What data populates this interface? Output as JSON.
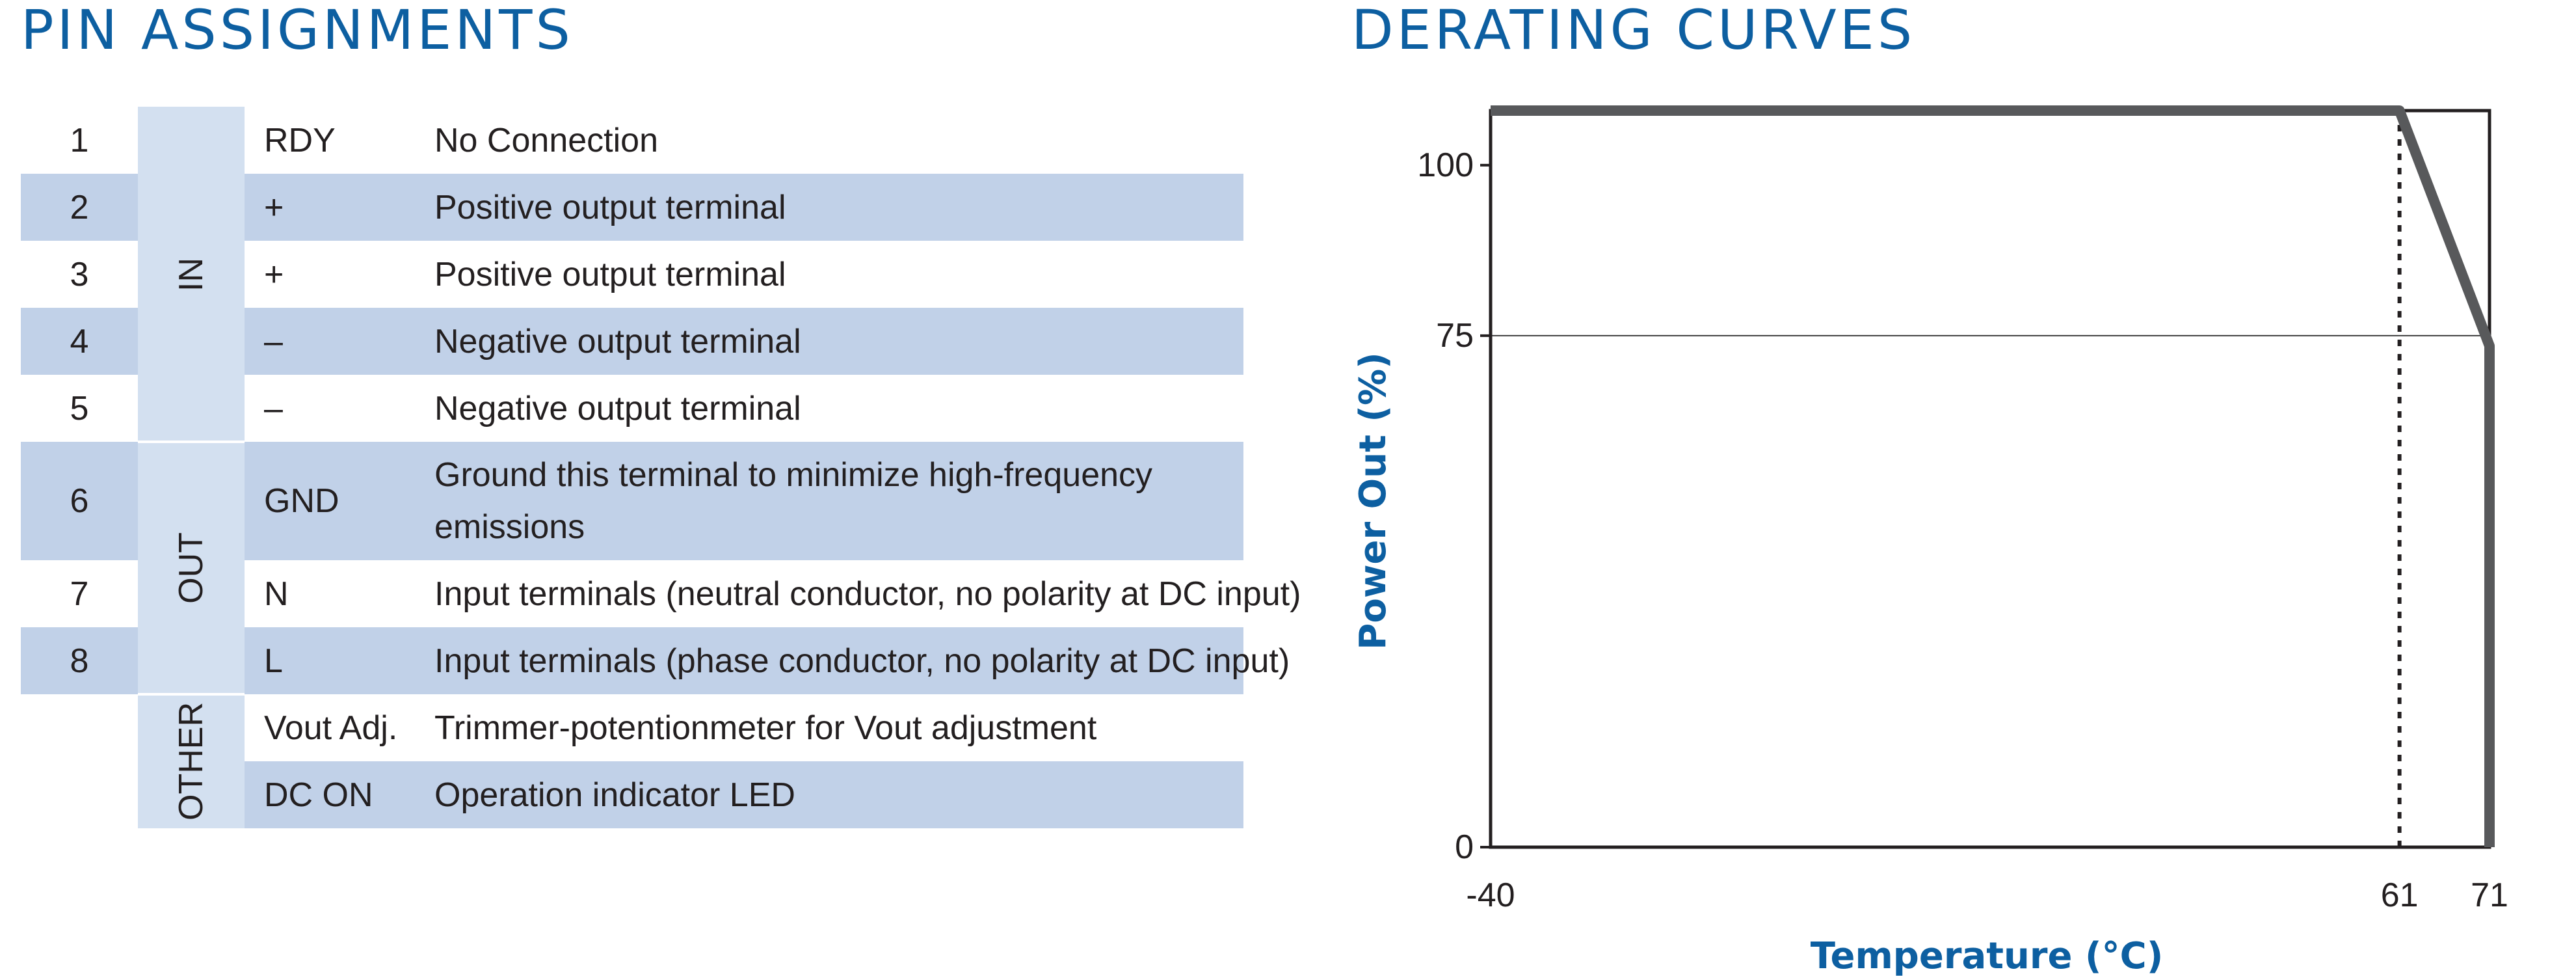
{
  "colors": {
    "heading": "#0d5fa1",
    "row_band": "#c1d1e8",
    "group_band": "#d3e0f0",
    "text": "#231f20",
    "curve": "#58595b",
    "frame": "#231f20",
    "grid": "#3c3c3c"
  },
  "pin_assignments": {
    "title": "PIN ASSIGNMENTS",
    "groups": [
      {
        "label": "IN",
        "first_row": 0,
        "last_row": 4
      },
      {
        "label": "OUT",
        "first_row": 5,
        "last_row": 7
      },
      {
        "label": "OTHER",
        "first_row": 8,
        "last_row": 9
      }
    ],
    "rows": [
      {
        "pin": "1",
        "signal": "RDY",
        "description": "No Connection",
        "shaded": false
      },
      {
        "pin": "2",
        "signal": "+",
        "description": "Positive output terminal",
        "shaded": true
      },
      {
        "pin": "3",
        "signal": "+",
        "description": "Positive output terminal",
        "shaded": false
      },
      {
        "pin": "4",
        "signal": "–",
        "description": "Negative output terminal",
        "shaded": true
      },
      {
        "pin": "5",
        "signal": "–",
        "description": "Negative output terminal",
        "shaded": false
      },
      {
        "pin": "6",
        "signal": "GND",
        "description": "Ground this terminal to minimize high-frequency",
        "description_line2": "emissions",
        "shaded": true
      },
      {
        "pin": "7",
        "signal": "N",
        "description": "Input terminals (neutral conductor, no polarity at DC input)",
        "shaded": false
      },
      {
        "pin": "8",
        "signal": "L",
        "description": "Input terminals (phase conductor, no polarity at DC input)",
        "shaded": true
      },
      {
        "pin": "",
        "signal": "Vout Adj.",
        "description": "Trimmer-potentionmeter for Vout adjustment",
        "shaded": false
      },
      {
        "pin": "",
        "signal": "DC ON",
        "description": "Operation indicator LED",
        "shaded": true
      }
    ]
  },
  "derating": {
    "title": "DERATING CURVES"
  },
  "chart_data": {
    "type": "line",
    "title": "DERATING CURVES",
    "xlabel": "Temperature (°C)",
    "ylabel": "Power Out (%)",
    "xlim": [
      -40,
      71
    ],
    "ylim": [
      0,
      108
    ],
    "x_ticks": [
      -40,
      61,
      71
    ],
    "y_ticks": [
      0,
      75,
      100
    ],
    "x_tick_labels": [
      "-40",
      "61",
      "71"
    ],
    "y_tick_labels": [
      "0",
      "75",
      "100"
    ],
    "reference_lines": [
      {
        "axis": "x",
        "value": 61,
        "style": "dotted"
      },
      {
        "axis": "y",
        "value": 75,
        "style": "solid-thin"
      }
    ],
    "series": [
      {
        "x": [
          -40,
          61,
          71,
          71
        ],
        "y": [
          108,
          108,
          73.5,
          0
        ]
      }
    ],
    "grid": false,
    "legend": "none"
  }
}
